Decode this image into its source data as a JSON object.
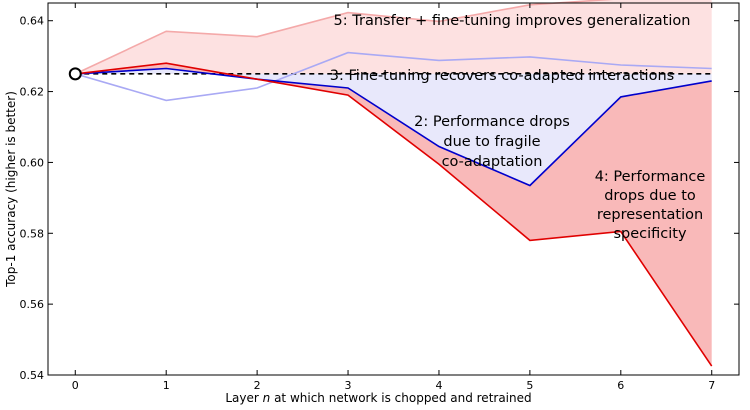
{
  "chart_data": {
    "type": "line",
    "title": "",
    "xlabel": "Layer n at which network is chopped and retrained",
    "xlabel_parts": [
      "Layer ",
      "n",
      " at which network is chopped and retrained"
    ],
    "ylabel": "Top-1 accuracy (higher is better)",
    "x": [
      0,
      1,
      2,
      3,
      4,
      5,
      6,
      7
    ],
    "xlim": [
      -0.3,
      7.3
    ],
    "ylim": [
      0.54,
      0.645
    ],
    "xticks": [
      "0",
      "1",
      "2",
      "3",
      "4",
      "5",
      "6",
      "7"
    ],
    "yticks": [
      "0.54",
      "0.56",
      "0.58",
      "0.60",
      "0.62",
      "0.64"
    ],
    "baseline": 0.625,
    "baseline_point": {
      "x": 0,
      "y": 0.625
    },
    "series": [
      {
        "key": "transfer_finetune",
        "color": "#f4a9a9",
        "values": [
          0.625,
          0.637,
          0.6355,
          0.6423,
          0.6398,
          0.6445,
          0.6462,
          0.6464
        ]
      },
      {
        "key": "selffer_finetune",
        "color": "#a9a9f4",
        "values": [
          0.625,
          0.6175,
          0.621,
          0.631,
          0.6288,
          0.6298,
          0.6275,
          0.6265
        ]
      },
      {
        "key": "selffer",
        "color": "#0000cc",
        "values": [
          0.625,
          0.6265,
          0.6235,
          0.621,
          0.6045,
          0.5935,
          0.6185,
          0.623
        ]
      },
      {
        "key": "transfer",
        "color": "#e00000",
        "values": [
          0.625,
          0.628,
          0.6235,
          0.619,
          0.5995,
          0.578,
          0.5805,
          0.5425
        ]
      }
    ],
    "fills": [
      {
        "from": "baseline",
        "to": "transfer_finetune",
        "color": "#fde1e1"
      },
      {
        "from": "selffer",
        "to": "baseline",
        "color": "#e8e8fb"
      },
      {
        "from": "transfer",
        "to": "selffer",
        "color": "#f9b9b9"
      }
    ],
    "annotations": [
      {
        "id": "annot-5",
        "lines": [
          "5: Transfer + fine-tuning improves generalization"
        ]
      },
      {
        "id": "annot-3",
        "lines": [
          "3: Fine-tuning recovers co-adapted interactions"
        ]
      },
      {
        "id": "annot-2",
        "lines": [
          "2: Performance drops",
          "due to fragile",
          "co-adaptation"
        ]
      },
      {
        "id": "annot-4",
        "lines": [
          "4: Performance",
          "drops due to",
          "representation",
          "specificity"
        ]
      }
    ]
  }
}
